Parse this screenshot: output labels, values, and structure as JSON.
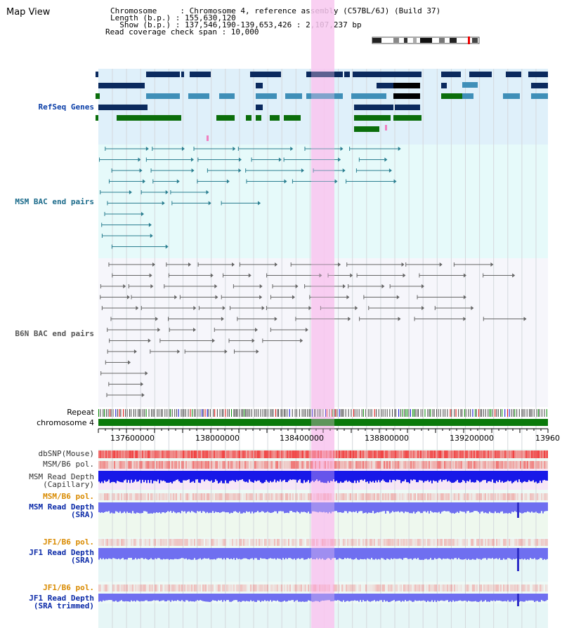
{
  "title": "Map View",
  "info": {
    "line1": "Chromosome     : Chromosome 4, reference assembly (C57BL/6J) (Build 37)",
    "line2": "Length (b.p.) : 155,630,120",
    "line3": "  Show (b.p.) : 137,546,190-139,653,426 : 2,107,237 bp",
    "line4": "Read coverage check span : 10,000"
  },
  "tracks": {
    "refseq": "RefSeq Genes",
    "msm_bac": "MSM BAC end pairs",
    "b6n_bac": "B6N BAC end pairs",
    "repeat": "Repeat",
    "chromosome": "chromosome 4",
    "dbsnp": "dbSNP(Mouse)",
    "msm_b6_pol1": "MSM/B6 pol.",
    "msm_depth_cap": "MSM Read Depth\n(Capillary)",
    "msm_b6_pol2": "MSM/B6 pol.",
    "msm_depth_sra": "MSM Read Depth\n(SRA)",
    "jf1_b6_pol1": "JF1/B6 pol.",
    "jf1_depth_sra": "JF1 Read Depth\n(SRA)",
    "jf1_b6_pol2": "JF1/B6 pol.",
    "jf1_depth_trim": "JF1 Read Depth\n(SRA trimmed)"
  },
  "axis_ticks": [
    "137600000",
    "138000000",
    "138400000",
    "138800000",
    "139200000",
    "13960"
  ],
  "colors": {
    "refseq_bg": "#dff0fa",
    "msm_bac_bg": "#e6fafa",
    "b6n_bac_bg": "#f6f6fb",
    "highlight": "#f8c8f0",
    "gene_dark": "#0b2a5e",
    "gene_mid": "#3f8fb8",
    "gene_green": "#0b6e0b",
    "msm_line": "#2a7e90",
    "b6n_line": "#666666",
    "chrom_green": "#0b7a0b",
    "depth_blue": "#1818e8",
    "depth_lavender": "#6f6ff0"
  }
}
